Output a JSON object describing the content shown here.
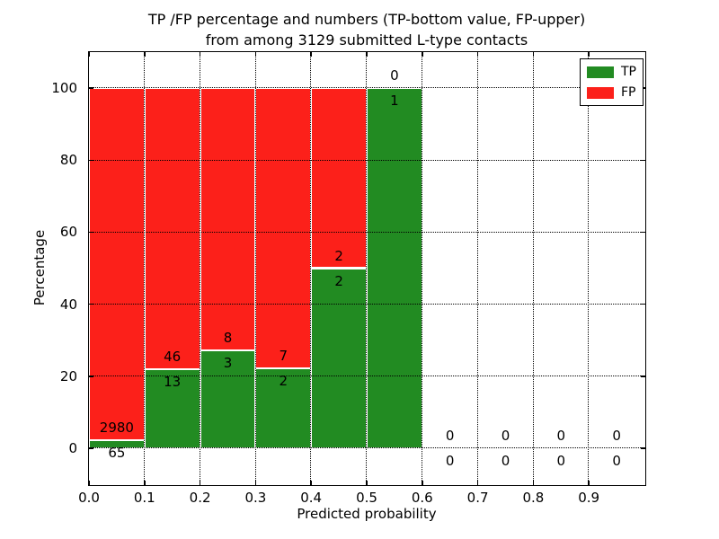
{
  "title": {
    "line1": "TP /FP percentage and numbers (TP-bottom value, FP-upper)",
    "line2": "from among 3129 submitted L-type contacts"
  },
  "axes": {
    "xlabel": "Predicted probability",
    "ylabel": "Percentage",
    "x_tick_labels": [
      "0.0",
      "0.1",
      "0.2",
      "0.3",
      "0.4",
      "0.5",
      "0.6",
      "0.7",
      "0.8",
      "0.9"
    ],
    "x_tick_values": [
      0.0,
      0.1,
      0.2,
      0.3,
      0.4,
      0.5,
      0.6,
      0.7,
      0.8,
      0.9
    ],
    "y_tick_labels": [
      "0",
      "20",
      "40",
      "60",
      "80",
      "100"
    ],
    "y_tick_values": [
      0,
      20,
      40,
      60,
      80,
      100
    ]
  },
  "legend": {
    "items": [
      {
        "label": "TP",
        "color": "#228b22"
      },
      {
        "label": "FP",
        "color": "#fc201a"
      }
    ]
  },
  "chart_data": {
    "type": "bar",
    "subtype": "stacked-percentage-histogram",
    "title": "TP /FP percentage and numbers (TP-bottom value, FP-upper) from among 3129 submitted L-type contacts",
    "xlabel": "Predicted probability",
    "ylabel": "Percentage",
    "xlim": [
      0.0,
      1.0
    ],
    "ylim": [
      -10,
      110
    ],
    "grid": "dotted",
    "legend_position": "upper right",
    "bin_edges": [
      0.0,
      0.1,
      0.2,
      0.3,
      0.4,
      0.5,
      0.6,
      0.7,
      0.8,
      0.9,
      1.0
    ],
    "series": [
      {
        "name": "TP",
        "color": "#228b22",
        "counts": [
          65,
          13,
          3,
          2,
          2,
          1,
          0,
          0,
          0,
          0
        ]
      },
      {
        "name": "FP",
        "color": "#fc201a",
        "counts": [
          2980,
          46,
          8,
          7,
          2,
          0,
          0,
          0,
          0,
          0
        ]
      }
    ],
    "tp_percent": [
      2.13,
      22.03,
      27.27,
      22.22,
      50.0,
      100.0,
      0,
      0,
      0,
      0
    ]
  }
}
